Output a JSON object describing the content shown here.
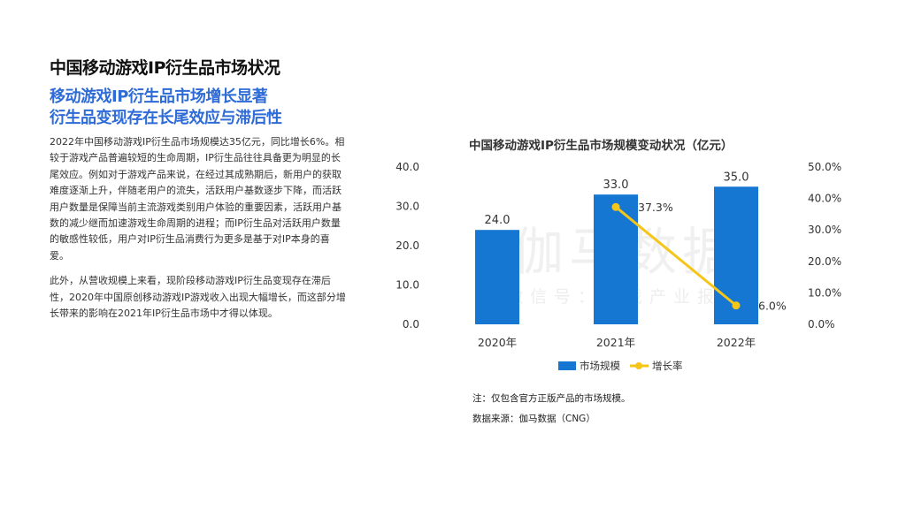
{
  "header": {
    "title": "中国移动游戏IP衍生品市场状况",
    "subtitle_line1": "移动游戏IP衍生品市场增长显著",
    "subtitle_line2": "衍生品变现存在长尾效应与滞后性"
  },
  "body": {
    "para1": "2022年中国移动游戏IP衍生品市场规模达35亿元，同比增长6%。相较于游戏产品普遍较短的生命周期，IP衍生品往往具备更为明显的长尾效应。例如对于游戏产品来说，在经过其成熟期后，新用户的获取难度逐渐上升，伴随老用户的流失，活跃用户基数逐步下降，而活跃用户数量是保障当前主流游戏类别用户体验的重要因素，活跃用户基数的减少继而加速游戏生命周期的进程；而IP衍生品对活跃用户数量的敏感性较低，用户对IP衍生品消费行为更多是基于对IP本身的喜爱。",
    "para2": "此外，从营收规模上来看，现阶段移动游戏IP衍生品变现存在滞后性，2020年中国原创移动游戏IP游戏收入出现大幅增长，而这部分增长带来的影响在2021年IP衍生品市场中才得以体现。"
  },
  "chart_data": {
    "type": "bar",
    "title": "中国移动游戏IP衍生品市场规模变动状况（亿元）",
    "categories": [
      "2020年",
      "2021年",
      "2022年"
    ],
    "series": [
      {
        "name": "市场规模",
        "type": "bar",
        "axis": "left",
        "values": [
          24.0,
          33.0,
          35.0
        ],
        "labels": [
          "24.0",
          "33.0",
          "35.0"
        ],
        "color": "#1677d2"
      },
      {
        "name": "增长率",
        "type": "line",
        "axis": "right",
        "values": [
          null,
          37.3,
          6.0
        ],
        "labels": [
          "",
          "37.3%",
          "6.0%"
        ],
        "color": "#f5c518"
      }
    ],
    "y_left": {
      "min": 0,
      "max": 40,
      "ticks": [
        "0.0",
        "10.0",
        "20.0",
        "30.0",
        "40.0"
      ]
    },
    "y_right": {
      "min": 0,
      "max": 50,
      "ticks": [
        "0.0%",
        "10.0%",
        "20.0%",
        "30.0%",
        "40.0%",
        "50.0%"
      ]
    },
    "grid": false,
    "legend_position": "bottom"
  },
  "watermark": {
    "main": "伽马数据",
    "sub": "微信号：游戏产业报告"
  },
  "footer": {
    "note": "注：仅包含官方正版产品的市场规模。",
    "source": "数据来源：伽马数据（CNG）"
  },
  "colors": {
    "bar": "#1677d2",
    "line": "#f5c518",
    "subtitle": "#2e6bd6"
  }
}
